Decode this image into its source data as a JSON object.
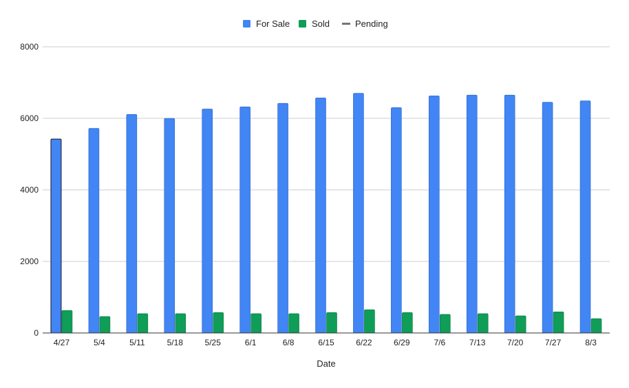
{
  "chart_data": {
    "type": "bar",
    "title": "",
    "xlabel": "Date",
    "ylabel": "",
    "ylim": [
      0,
      8000
    ],
    "yticks": [
      0,
      2000,
      4000,
      6000,
      8000
    ],
    "grid": true,
    "legend_position": "top-center",
    "categories": [
      "4/27",
      "5/4",
      "5/11",
      "5/18",
      "5/25",
      "6/1",
      "6/8",
      "6/15",
      "6/22",
      "6/29",
      "7/6",
      "7/13",
      "7/20",
      "7/27",
      "8/3"
    ],
    "series": [
      {
        "name": "For Sale",
        "color": "#4285f4",
        "values": [
          5420,
          5720,
          6110,
          6000,
          6260,
          6320,
          6420,
          6570,
          6700,
          6300,
          6630,
          6650,
          6650,
          6450,
          6490
        ]
      },
      {
        "name": "Sold",
        "color": "#0f9d58",
        "values": [
          630,
          460,
          540,
          540,
          570,
          540,
          540,
          570,
          650,
          570,
          520,
          540,
          480,
          590,
          400
        ]
      },
      {
        "name": "Pending",
        "color": "#757575",
        "values": [
          0,
          0,
          0,
          0,
          0,
          0,
          0,
          0,
          0,
          0,
          0,
          0,
          0,
          0,
          0
        ]
      }
    ]
  }
}
